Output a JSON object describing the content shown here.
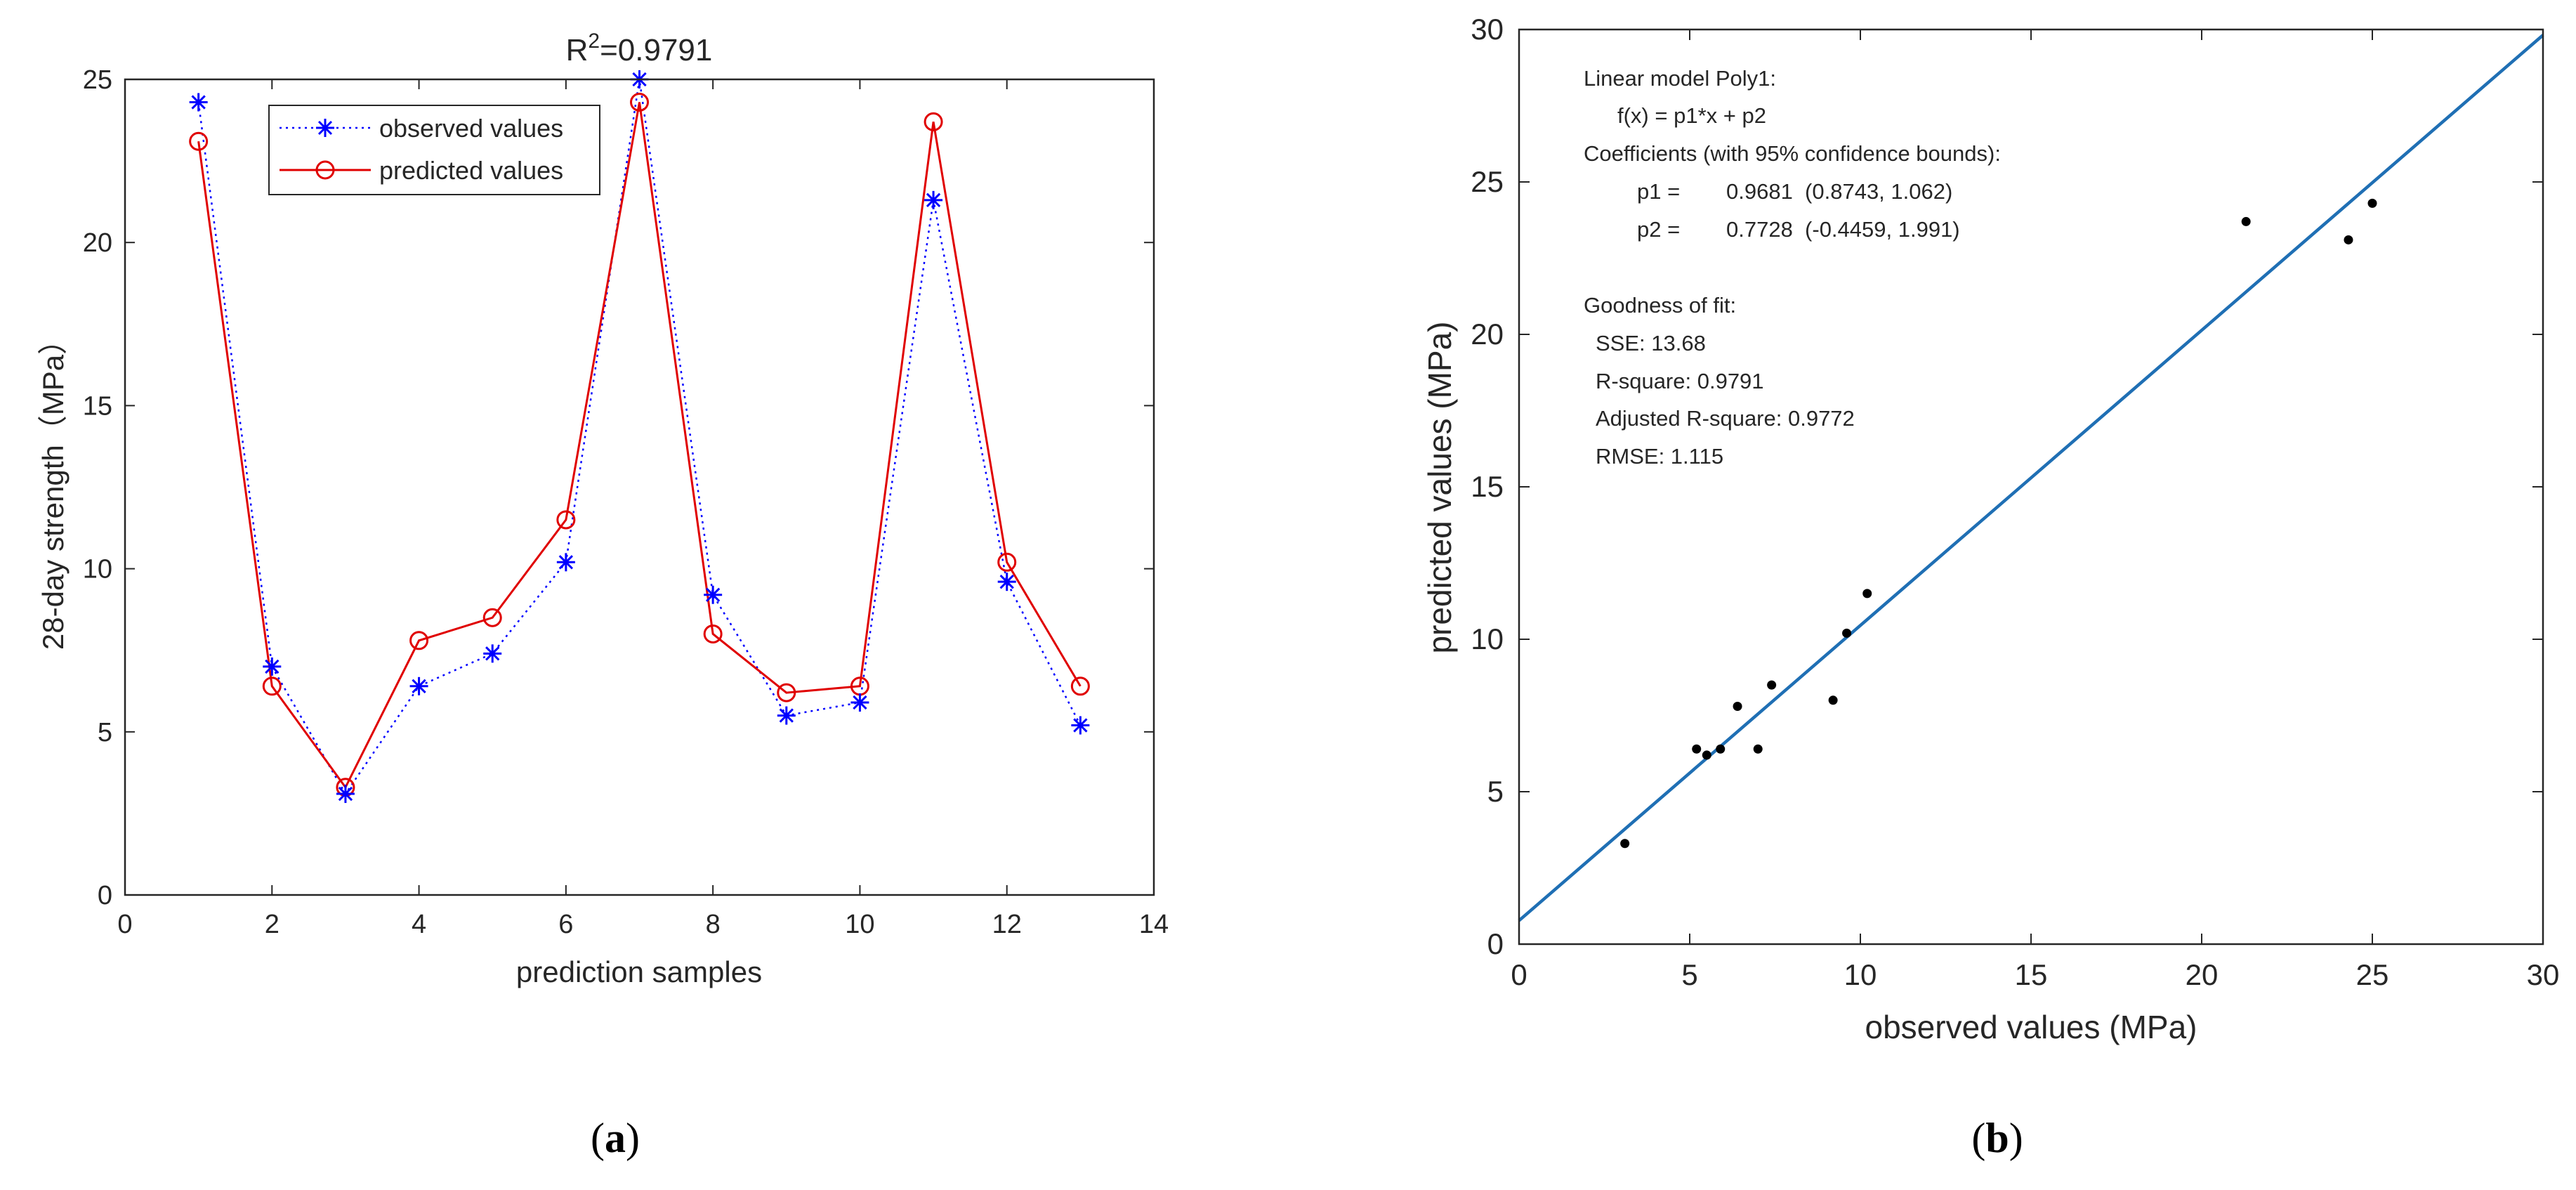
{
  "panel_labels": {
    "a": "a",
    "b": "b"
  },
  "colors": {
    "observed": "#0000ff",
    "predicted": "#e00000",
    "fit_line": "#1f6fb4",
    "axis": "#262626",
    "points": "#000000"
  },
  "chart_data": [
    {
      "type": "line",
      "title": "R²=0.9791",
      "xlabel": "prediction samples",
      "ylabel": "28-day strength（MPa）",
      "xlim": [
        0,
        14
      ],
      "ylim": [
        0,
        25
      ],
      "xticks": [
        0,
        2,
        4,
        6,
        8,
        10,
        12,
        14
      ],
      "yticks": [
        0,
        5,
        10,
        15,
        20,
        25
      ],
      "x": [
        1,
        2,
        3,
        4,
        5,
        6,
        7,
        8,
        9,
        10,
        11,
        12,
        13
      ],
      "legend_position": "top-left",
      "series": [
        {
          "name": "observed values",
          "marker": "asterisk",
          "line_style": "dotted",
          "values": [
            24.3,
            7.0,
            3.1,
            6.4,
            7.4,
            10.2,
            25.0,
            9.2,
            5.5,
            5.9,
            21.3,
            9.6,
            5.2
          ]
        },
        {
          "name": "predicted values",
          "marker": "circle",
          "line_style": "solid",
          "values": [
            23.1,
            6.4,
            3.3,
            7.8,
            8.5,
            11.5,
            24.3,
            8.0,
            6.2,
            6.4,
            23.7,
            10.2,
            6.4
          ]
        }
      ]
    },
    {
      "type": "scatter",
      "xlabel": "observed values (MPa)",
      "ylabel": "predicted values (MPa)",
      "xlim": [
        0,
        30
      ],
      "ylim": [
        0,
        30
      ],
      "xticks": [
        0,
        5,
        10,
        15,
        20,
        25,
        30
      ],
      "yticks": [
        0,
        5,
        10,
        15,
        20,
        25,
        30
      ],
      "points": [
        {
          "x": 3.1,
          "y": 3.3
        },
        {
          "x": 5.2,
          "y": 6.4
        },
        {
          "x": 5.5,
          "y": 6.2
        },
        {
          "x": 5.9,
          "y": 6.4
        },
        {
          "x": 6.4,
          "y": 7.8
        },
        {
          "x": 7.0,
          "y": 6.4
        },
        {
          "x": 7.4,
          "y": 8.5
        },
        {
          "x": 9.2,
          "y": 8.0
        },
        {
          "x": 9.6,
          "y": 10.2
        },
        {
          "x": 10.2,
          "y": 11.5
        },
        {
          "x": 21.3,
          "y": 23.7
        },
        {
          "x": 24.3,
          "y": 23.1
        },
        {
          "x": 25.0,
          "y": 24.3
        }
      ],
      "fit": {
        "p1": 0.9681,
        "p2": 0.7728
      },
      "annotation_lines": [
        "Linear model Poly1:",
        "f(x) = p1*x + p2",
        "Coefficients (with 95% confidence bounds):",
        "p1 =",
        "0.9681  (0.8743, 1.062)",
        "p2 =",
        "0.7728  (-0.4459, 1.991)",
        "Goodness of fit:",
        "SSE: 13.68",
        "R-square: 0.9791",
        "Adjusted R-square: 0.9772",
        "RMSE: 1.115"
      ]
    }
  ]
}
